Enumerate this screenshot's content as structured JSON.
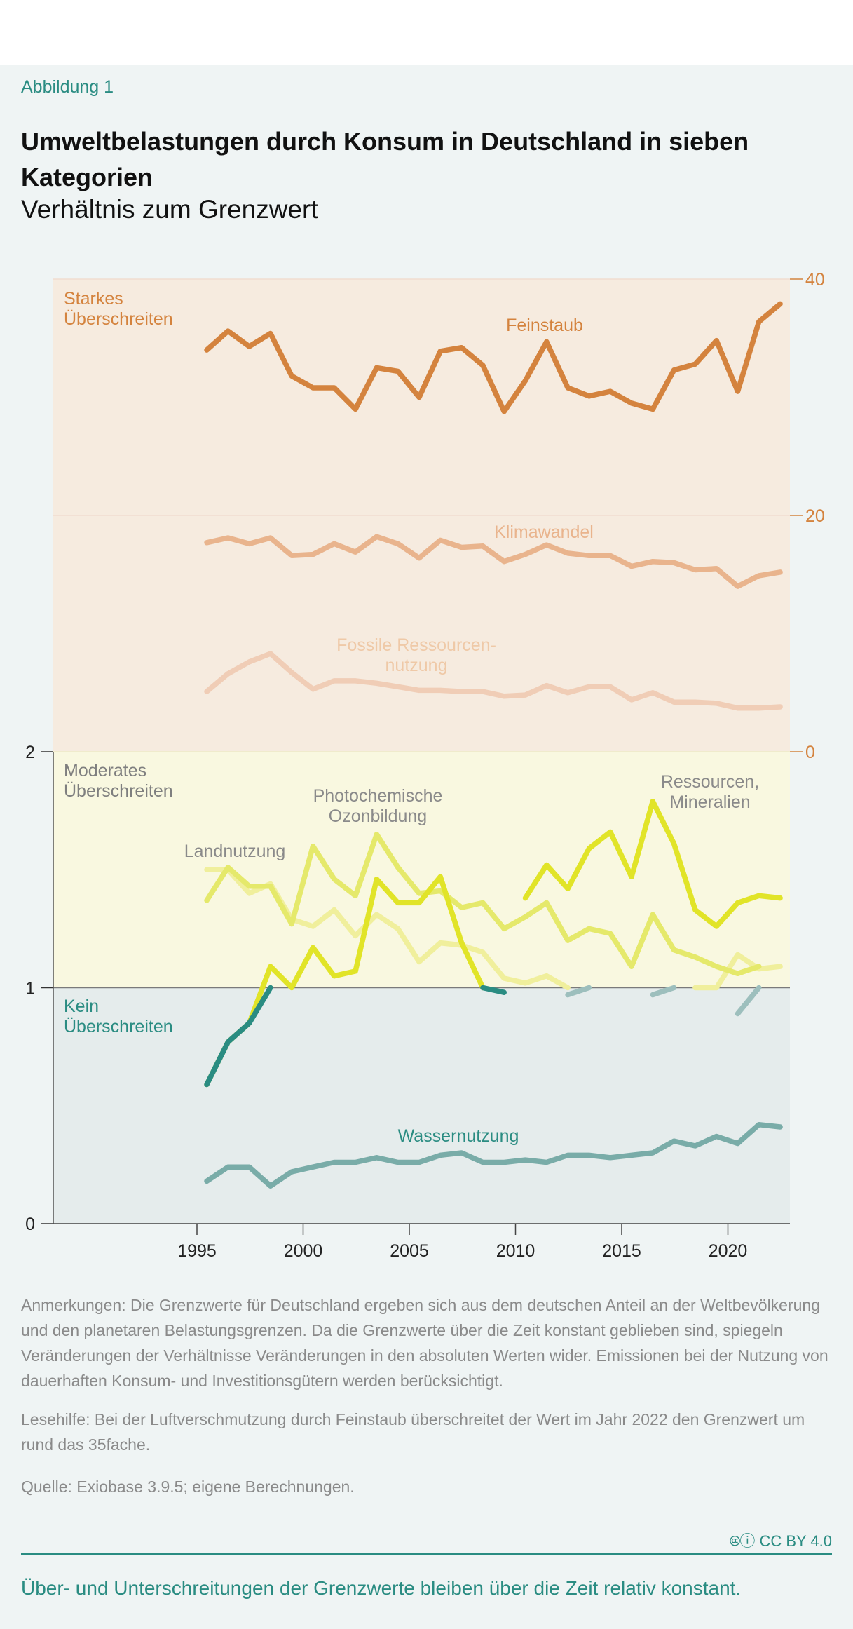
{
  "figure_label": "Abbildung 1",
  "title": "Umweltbelastungen durch Konsum in Deutschland in sieben Kategorien",
  "subtitle": "Verhältnis zum Grenzwert",
  "notes": {
    "remarks": "Anmerkungen: Die Grenzwerte für Deutschland ergeben sich aus dem deutschen Anteil an der Weltbevölkerung und den planetaren Belastungsgrenzen. Da die Grenzwerte über die Zeit konstant geblieben sind, spiegeln Veränderungen der Verhältnisse Veränderungen in den absoluten Werten wider. Emissionen bei der Nutzung von dauerhaften Konsum- und Investitionsgütern werden berücksichtigt.",
    "reading_aid": "Lesehilfe: Bei der Luftverschmutzung durch Feinstaub überschreitet der Wert im Jahr 2022 den Grenzwert um rund das 35fache.",
    "source": "Quelle: Exiobase 3.9.5; eigene Berechnungen."
  },
  "license": "CC BY 4.0",
  "takeaway": "Über- und Unterschreitungen der Grenzwerte bleiben über die Zeit relativ konstant.",
  "chart_data": {
    "type": "line",
    "x_ticks": [
      1995,
      2000,
      2005,
      2010,
      2015,
      2020
    ],
    "left_axis": {
      "ticks": [
        0,
        1,
        2
      ],
      "ylim": [
        0,
        2
      ]
    },
    "right_axis": {
      "ticks": [
        0,
        20,
        40
      ],
      "ylim": [
        0,
        40
      ],
      "color": "#d4833e"
    },
    "zones": [
      {
        "label": "Starkes Überschreiten",
        "color": "#d4833e",
        "fill": "#f6ebdf"
      },
      {
        "label": "Moderates Überschreiten",
        "color": "#7f7f7f",
        "fill": "#f9f8e0"
      },
      {
        "label": "Kein Überschreiten",
        "color": "#2a8c82",
        "fill": "#e5ecec"
      }
    ],
    "x": [
      1995,
      1996,
      1997,
      1998,
      1999,
      2000,
      2001,
      2002,
      2003,
      2004,
      2005,
      2006,
      2007,
      2008,
      2009,
      2010,
      2011,
      2012,
      2013,
      2014,
      2015,
      2016,
      2017,
      2018,
      2019,
      2020,
      2021,
      2022
    ],
    "series": [
      {
        "name": "Feinstaub",
        "axis": "right",
        "color": "#d4833e",
        "opacity": 1,
        "values": [
          34.0,
          35.6,
          34.3,
          35.4,
          31.8,
          30.8,
          30.8,
          29.0,
          32.5,
          32.2,
          30.0,
          33.9,
          34.2,
          32.7,
          28.8,
          31.4,
          34.7,
          30.8,
          30.1,
          30.5,
          29.5,
          29.0,
          32.3,
          32.8,
          34.8,
          30.5,
          36.4,
          37.9
        ]
      },
      {
        "name": "Klimawandel",
        "axis": "right",
        "color": "#e9b48d",
        "opacity": 1,
        "values": [
          17.7,
          18.1,
          17.6,
          18.1,
          16.6,
          16.7,
          17.6,
          16.9,
          18.2,
          17.6,
          16.4,
          17.9,
          17.3,
          17.4,
          16.1,
          16.7,
          17.5,
          16.8,
          16.6,
          16.6,
          15.7,
          16.1,
          16.0,
          15.4,
          15.5,
          14.0,
          14.9,
          15.2
        ]
      },
      {
        "name": "Fossile Ressourcen-\nnutzung",
        "axis": "right",
        "color": "#f0cdb6",
        "opacity": 1,
        "values": [
          5.1,
          6.6,
          7.6,
          8.3,
          6.7,
          5.3,
          6.0,
          6.0,
          5.8,
          5.5,
          5.2,
          5.2,
          5.1,
          5.1,
          4.7,
          4.8,
          5.6,
          5.0,
          5.5,
          5.5,
          4.4,
          5.0,
          4.2,
          4.2,
          4.1,
          3.7,
          3.7,
          3.8
        ]
      },
      {
        "name": "Landnutzung",
        "axis": "left",
        "color": "#f0ef9c",
        "opacity": 1,
        "values": [
          1.5,
          1.5,
          1.4,
          1.44,
          1.29,
          1.26,
          1.33,
          1.22,
          1.31,
          1.25,
          1.11,
          1.19,
          1.18,
          1.15,
          1.04,
          1.02,
          1.05,
          1.0,
          null,
          null,
          null,
          null,
          null,
          1.0,
          1.0,
          1.14,
          1.08,
          1.09
        ]
      },
      {
        "name": "Photochemische\nOzonbildung",
        "axis": "left",
        "color": "#e5e96b",
        "opacity": 1,
        "values": [
          1.37,
          1.51,
          1.43,
          1.43,
          1.27,
          1.6,
          1.46,
          1.39,
          1.65,
          1.51,
          1.4,
          1.41,
          1.34,
          1.36,
          1.25,
          1.3,
          1.36,
          1.2,
          1.25,
          1.23,
          1.09,
          1.31,
          1.16,
          1.13,
          1.09,
          1.06,
          1.09,
          null
        ]
      },
      {
        "name": "Ressourcen,\nMineralien",
        "axis": "left",
        "color": "#e1e428",
        "opacity": 1,
        "values": [
          0.59,
          0.77,
          0.85,
          1.09,
          1.0,
          1.17,
          1.05,
          1.07,
          1.46,
          1.36,
          1.36,
          1.47,
          1.19,
          1.0,
          null,
          1.38,
          1.52,
          1.42,
          1.59,
          1.66,
          1.47,
          1.79,
          1.61,
          1.33,
          1.26,
          1.36,
          1.39,
          1.38
        ]
      },
      {
        "name": "",
        "axis": "left",
        "color": "#2a8c82",
        "opacity": 1,
        "values": [
          0.59,
          0.77,
          0.85,
          1.0,
          null,
          null,
          null,
          null,
          null,
          null,
          null,
          null,
          null,
          1.0,
          0.98,
          null,
          null,
          null,
          null,
          null,
          null,
          null,
          null,
          null,
          null,
          null,
          null,
          null
        ]
      },
      {
        "name": "",
        "axis": "left",
        "color": "#9dbfbd",
        "opacity": 1,
        "values": [
          null,
          null,
          null,
          null,
          null,
          null,
          null,
          null,
          null,
          null,
          null,
          null,
          null,
          null,
          null,
          null,
          null,
          0.97,
          1.0,
          null,
          null,
          0.97,
          1.0,
          null,
          null,
          0.89,
          1.0,
          null
        ]
      },
      {
        "name": "Wassernutzung",
        "axis": "left",
        "color": "#79aca8",
        "opacity": 1,
        "values": [
          0.18,
          0.24,
          0.24,
          0.16,
          0.22,
          0.24,
          0.26,
          0.26,
          0.28,
          0.26,
          0.26,
          0.29,
          0.3,
          0.26,
          0.26,
          0.27,
          0.26,
          0.29,
          0.29,
          0.28,
          0.29,
          0.3,
          0.35,
          0.33,
          0.37,
          0.34,
          0.42,
          0.41
        ]
      }
    ]
  }
}
